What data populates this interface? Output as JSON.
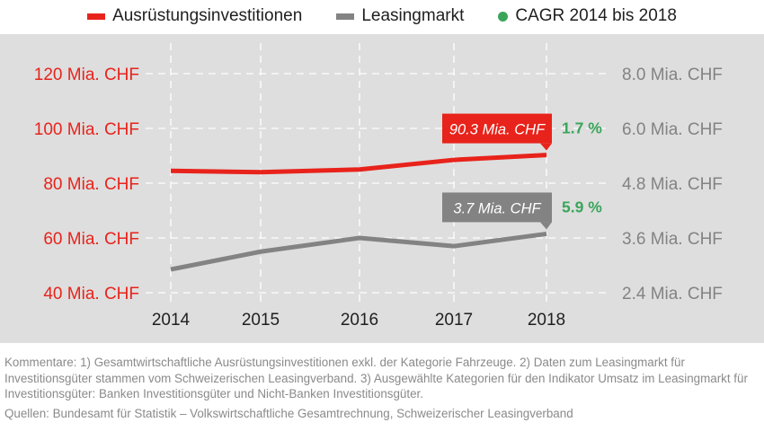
{
  "legend": {
    "items": [
      {
        "label": "Ausrüstungsinvestitionen",
        "color": "#e8231b",
        "shape": "line"
      },
      {
        "label": "Leasingmarkt",
        "color": "#838383",
        "shape": "line"
      },
      {
        "label": "CAGR 2014 bis 2018",
        "color": "#3aa55a",
        "shape": "dot"
      }
    ]
  },
  "chart_data": {
    "type": "line",
    "x": [
      "2014",
      "2015",
      "2016",
      "2017",
      "2018"
    ],
    "y_left": {
      "ticks": [
        "40 Mia. CHF",
        "60 Mia. CHF",
        "80 Mia. CHF",
        "100 Mia. CHF",
        "120 Mia. CHF"
      ],
      "tick_values": [
        40,
        60,
        80,
        100,
        120
      ],
      "ylim": [
        40,
        120
      ],
      "color": "#e8231b"
    },
    "y_right": {
      "ticks": [
        "2.4 Mia. CHF",
        "3.6 Mia. CHF",
        "4.8 Mia. CHF",
        "6.0 Mia. CHF",
        "8.0 Mia. CHF"
      ],
      "color": "#838383"
    },
    "series": [
      {
        "name": "Ausrüstungsinvestitionen",
        "axis": "left",
        "color": "#e8231b",
        "values": [
          84.5,
          84,
          85,
          88.5,
          90.3
        ],
        "end_label": "90.3 Mia. CHF",
        "cagr": "1.7 %"
      },
      {
        "name": "Leasingmarkt",
        "axis": "left",
        "color": "#838383",
        "values": [
          48.5,
          55,
          60,
          57,
          61.5
        ],
        "end_label": "3.7 Mia. CHF",
        "cagr": "5.9 %"
      }
    ],
    "grid": "horizontal dashed white",
    "cagr_color": "#3aa55a"
  },
  "footnotes": {
    "comment": "Kommentare: 1) Gesamtwirtschaftliche Ausrüstungsinvestitionen exkl. der Kategorie Fahrzeuge. 2) Daten zum Leasingmarkt für Investitionsgüter stammen vom Schweizerischen Leasingverband. 3) Ausgewählte Kategorien für den Indikator Umsatz im Leasingmarkt für Investitionsgüter: Banken Investitionsgüter und Nicht-Banken Investitionsgüter.",
    "sources": "Quellen: Bundesamt für Statistik – Volkswirtschaftliche Gesamtrechnung, Schweizerischer Leasingverband"
  }
}
